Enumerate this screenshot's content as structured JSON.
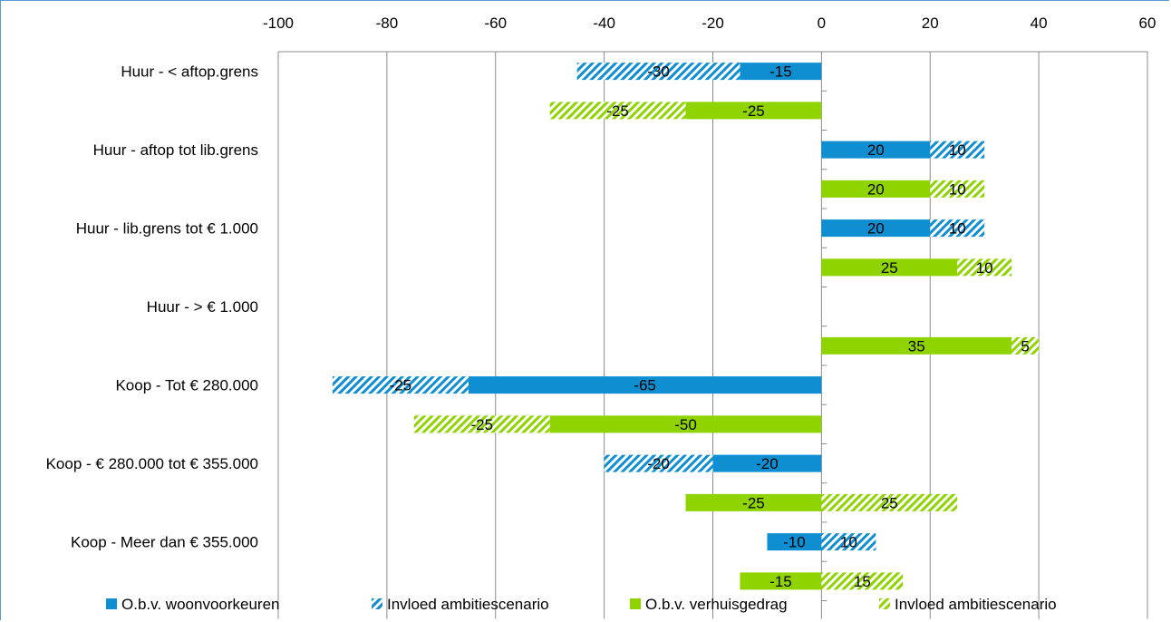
{
  "chart_data": {
    "type": "bar",
    "orientation": "horizontal",
    "xlim": [
      -100,
      60
    ],
    "x_ticks": [
      -100,
      -80,
      -60,
      -40,
      -20,
      0,
      20,
      40,
      60
    ],
    "grid": true,
    "legend_position": "bottom",
    "categories": [
      "Huur - < aftop.grens",
      "Huur - aftop tot lib.grens",
      "Huur - lib.grens tot € 1.000",
      "Huur - > € 1.000",
      "Koop - Tot  € 280.000",
      "Koop - € 280.000 tot € 355.000",
      "Koop - Meer dan € 355.000"
    ],
    "series": [
      {
        "name": "O.b.v. woonvoorkeuren",
        "color": "#0f8fd2",
        "pattern": "solid",
        "group": "woonvoorkeuren",
        "values": [
          -15,
          20,
          20,
          null,
          -65,
          -20,
          -10
        ]
      },
      {
        "name": "Invloed ambitiescenario",
        "color": "#0f8fd2",
        "pattern": "hatched",
        "group": "woonvoorkeuren",
        "values": [
          -30,
          10,
          10,
          null,
          -25,
          -20,
          10
        ]
      },
      {
        "name": "O.b.v. verhuisgedrag",
        "color": "#8fd400",
        "pattern": "solid",
        "group": "verhuisgedrag",
        "values": [
          -25,
          20,
          25,
          35,
          -50,
          -25,
          -15
        ]
      },
      {
        "name": "Invloed ambitiescenario",
        "color": "#8fd400",
        "pattern": "hatched",
        "group": "verhuisgedrag",
        "values": [
          -25,
          10,
          10,
          5,
          -25,
          25,
          15
        ]
      }
    ]
  },
  "legend": [
    {
      "label": "O.b.v. woonvoorkeuren",
      "color": "#0f8fd2",
      "pattern": "solid"
    },
    {
      "label": "Invloed ambitiescenario",
      "color": "#0f8fd2",
      "pattern": "hatched"
    },
    {
      "label": "O.b.v. verhuisgedrag",
      "color": "#8fd400",
      "pattern": "solid"
    },
    {
      "label": "Invloed ambitiescenario",
      "color": "#8fd400",
      "pattern": "hatched"
    }
  ]
}
